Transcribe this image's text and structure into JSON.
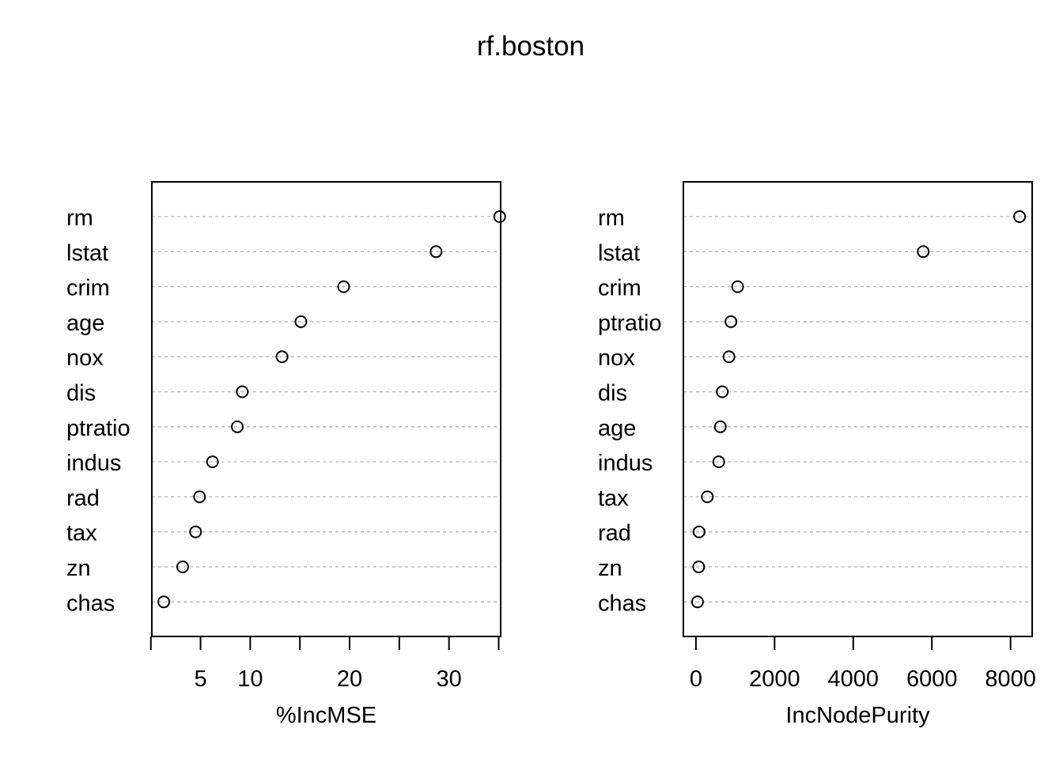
{
  "chart_data": {
    "type": "scatter",
    "title": "rf.boston",
    "panels": [
      {
        "xlabel": "%IncMSE",
        "xlim": [
          0.1,
          35.2
        ],
        "xticks": [
          0,
          5,
          10,
          15,
          20,
          25,
          30,
          35
        ],
        "xticklabels": [
          "",
          "5",
          "10",
          "",
          "20",
          "",
          "30",
          ""
        ],
        "categories": [
          "rm",
          "lstat",
          "crim",
          "age",
          "nox",
          "dis",
          "ptratio",
          "indus",
          "rad",
          "tax",
          "zn",
          "chas"
        ],
        "values": [
          35.1,
          28.7,
          19.4,
          15.1,
          13.2,
          9.2,
          8.7,
          6.2,
          4.9,
          4.5,
          3.2,
          1.3
        ],
        "grid": true
      },
      {
        "xlabel": "IncNodePurity",
        "xlim": [
          -320,
          8550
        ],
        "xticks": [
          0,
          2000,
          4000,
          6000,
          8000
        ],
        "xticklabels": [
          "0",
          "2000",
          "4000",
          "6000",
          "8000"
        ],
        "categories": [
          "rm",
          "lstat",
          "crim",
          "ptratio",
          "nox",
          "dis",
          "age",
          "indus",
          "tax",
          "rad",
          "zn",
          "chas"
        ],
        "values": [
          8230,
          5780,
          1060,
          890,
          840,
          670,
          620,
          580,
          290,
          80,
          70,
          40
        ],
        "grid": true
      }
    ]
  }
}
